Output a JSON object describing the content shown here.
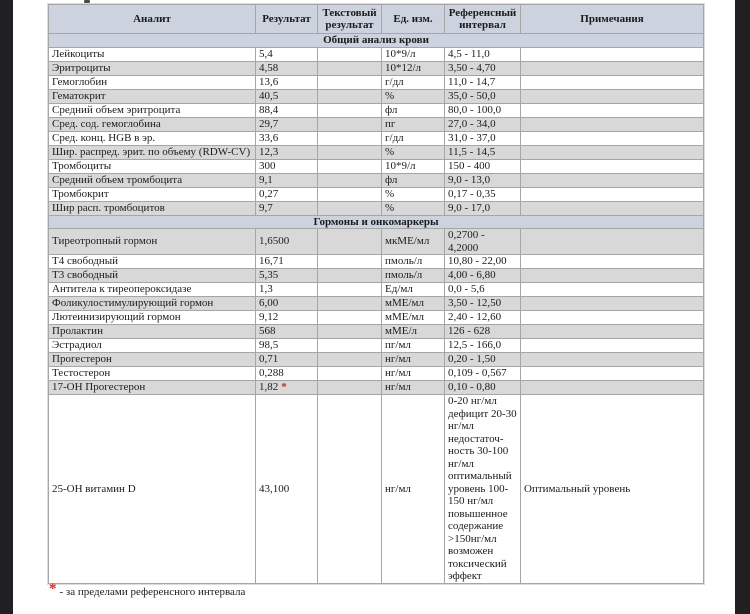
{
  "page": {
    "side_strip_color": "#202023",
    "background": "#ffffff"
  },
  "colors": {
    "header_bg": "#ccd3df",
    "stripe_bg": "#d8d8d8",
    "border": "#a6a6a6",
    "flag_red": "#c42a2a"
  },
  "table": {
    "headers": [
      "Аналит",
      "Результат",
      "Текстовый результат",
      "Ед. изм.",
      "Референсный интервал",
      "Примечания"
    ],
    "sections": [
      {
        "title": "Общий анализ крови",
        "rows": [
          {
            "analyte": "Лейкоциты",
            "result": "5,4",
            "flag": "",
            "text_result": "",
            "unit": "10*9/л",
            "reference": "4,5 - 11,0",
            "note": ""
          },
          {
            "analyte": "Эритроциты",
            "result": "4,58",
            "flag": "",
            "text_result": "",
            "unit": "10*12/л",
            "reference": "3,50 - 4,70",
            "note": ""
          },
          {
            "analyte": "Гемоглобин",
            "result": "13,6",
            "flag": "",
            "text_result": "",
            "unit": "г/дл",
            "reference": "11,0 - 14,7",
            "note": ""
          },
          {
            "analyte": "Гематокрит",
            "result": "40,5",
            "flag": "",
            "text_result": "",
            "unit": "%",
            "reference": "35,0 - 50,0",
            "note": ""
          },
          {
            "analyte": "Средний объем эритроцита",
            "result": "88,4",
            "flag": "",
            "text_result": "",
            "unit": "фл",
            "reference": "80,0 - 100,0",
            "note": ""
          },
          {
            "analyte": "Сред. сод. гемоглобина",
            "result": "29,7",
            "flag": "",
            "text_result": "",
            "unit": "пг",
            "reference": "27,0 - 34,0",
            "note": ""
          },
          {
            "analyte": "Сред. конц. HGB в эр.",
            "result": "33,6",
            "flag": "",
            "text_result": "",
            "unit": "г/дл",
            "reference": "31,0 - 37,0",
            "note": ""
          },
          {
            "analyte": "Шир. распред. эрит. по объему (RDW-CV)",
            "result": "12,3",
            "flag": "",
            "text_result": "",
            "unit": "%",
            "reference": "11,5 - 14,5",
            "note": ""
          },
          {
            "analyte": "Тромбоциты",
            "result": "300",
            "flag": "",
            "text_result": "",
            "unit": "10*9/л",
            "reference": "150 - 400",
            "note": ""
          },
          {
            "analyte": "Средний объем тромбоцита",
            "result": "9,1",
            "flag": "",
            "text_result": "",
            "unit": "фл",
            "reference": "9,0 - 13,0",
            "note": ""
          },
          {
            "analyte": "Тромбокрит",
            "result": "0,27",
            "flag": "",
            "text_result": "",
            "unit": "%",
            "reference": "0,17 - 0,35",
            "note": ""
          },
          {
            "analyte": "Шир расп. тромбоцитов",
            "result": "9,7",
            "flag": "",
            "text_result": "",
            "unit": "%",
            "reference": "9,0 - 17,0",
            "note": ""
          }
        ]
      },
      {
        "title": "Гормоны и онкомаркеры",
        "rows": [
          {
            "analyte": "Тиреотропный гормон",
            "result": "1,6500",
            "flag": "",
            "text_result": "",
            "unit": "мкМЕ/мл",
            "reference": "0,2700 - 4,2000",
            "note": ""
          },
          {
            "analyte": "Т4 свободный",
            "result": "16,71",
            "flag": "",
            "text_result": "",
            "unit": "пмоль/л",
            "reference": "10,80 - 22,00",
            "note": ""
          },
          {
            "analyte": "Т3 свободный",
            "result": "5,35",
            "flag": "",
            "text_result": "",
            "unit": "пмоль/л",
            "reference": "4,00 - 6,80",
            "note": ""
          },
          {
            "analyte": "Антитела к тиреопероксидазе",
            "result": "1,3",
            "flag": "",
            "text_result": "",
            "unit": "Ед/мл",
            "reference": "0,0 - 5,6",
            "note": ""
          },
          {
            "analyte": "Фоликулостимулирующий гормон",
            "result": "6,00",
            "flag": "",
            "text_result": "",
            "unit": "мМЕ/мл",
            "reference": "3,50 - 12,50",
            "note": ""
          },
          {
            "analyte": "Лютеинизирующий гормон",
            "result": "9,12",
            "flag": "",
            "text_result": "",
            "unit": "мМЕ/мл",
            "reference": "2,40 - 12,60",
            "note": ""
          },
          {
            "analyte": "Пролактин",
            "result": "568",
            "flag": "",
            "text_result": "",
            "unit": "мМЕ/л",
            "reference": "126 - 628",
            "note": ""
          },
          {
            "analyte": "Эстрадиол",
            "result": "98,5",
            "flag": "",
            "text_result": "",
            "unit": "пг/мл",
            "reference": "12,5 - 166,0",
            "note": ""
          },
          {
            "analyte": "Прогестерон",
            "result": "0,71",
            "flag": "",
            "text_result": "",
            "unit": "нг/мл",
            "reference": "0,20 - 1,50",
            "note": ""
          },
          {
            "analyte": "Тестостерон",
            "result": "0,288",
            "flag": "",
            "text_result": "",
            "unit": "нг/мл",
            "reference": "0,109 - 0,567",
            "note": ""
          },
          {
            "analyte": "17-ОН Прогестерон",
            "result": "1,82",
            "flag": "*",
            "text_result": "",
            "unit": "нг/мл",
            "reference": "0,10 - 0,80",
            "note": ""
          },
          {
            "analyte": "25-ОН витамин D",
            "result": "43,100",
            "flag": "",
            "text_result": "",
            "unit": "нг/мл",
            "reference": "0-20 нг/мл дефицит 20-30 нг/мл недостаточ-ность 30-100 нг/мл оптимальный уровень 100-150 нг/мл повышенное содержание >150нг/мл возможен токсический эффект",
            "note": "Оптимальный уровень"
          }
        ]
      }
    ]
  },
  "footnote": {
    "marker": "*",
    "text": "- за пределами референсного интервала"
  }
}
